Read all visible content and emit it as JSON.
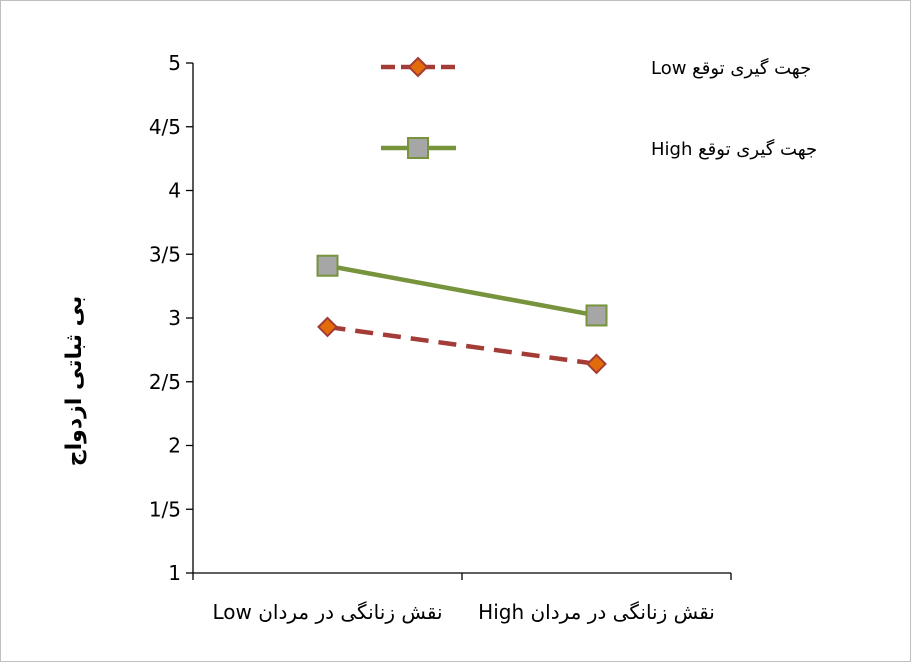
{
  "chart_data": {
    "type": "line",
    "title": "",
    "xlabel": "",
    "ylabel": "بی ثباتی ازدواج",
    "categories": [
      "نقش زنانگی در مردان Low",
      "نقش زنانگی در مردان High"
    ],
    "ylim": [
      1,
      5
    ],
    "yticks": [
      "1",
      "1/5",
      "2",
      "2/5",
      "3",
      "3/5",
      "4",
      "4/5",
      "5"
    ],
    "ytick_values": [
      1,
      1.5,
      2,
      2.5,
      3,
      3.5,
      4,
      4.5,
      5
    ],
    "series": [
      {
        "name": "جهت گیری توقع Low",
        "values": [
          2.93,
          2.64
        ],
        "color": "#a33b36",
        "marker_color": "#e36c0a",
        "line_style": "dashed",
        "marker": "diamond"
      },
      {
        "name": "جهت گیری توقع High",
        "values": [
          3.41,
          3.02
        ],
        "color": "#77933c",
        "marker_color": "#a6a6a6",
        "line_style": "solid",
        "marker": "square"
      }
    ],
    "grid": false,
    "legend_position": "top-right"
  }
}
